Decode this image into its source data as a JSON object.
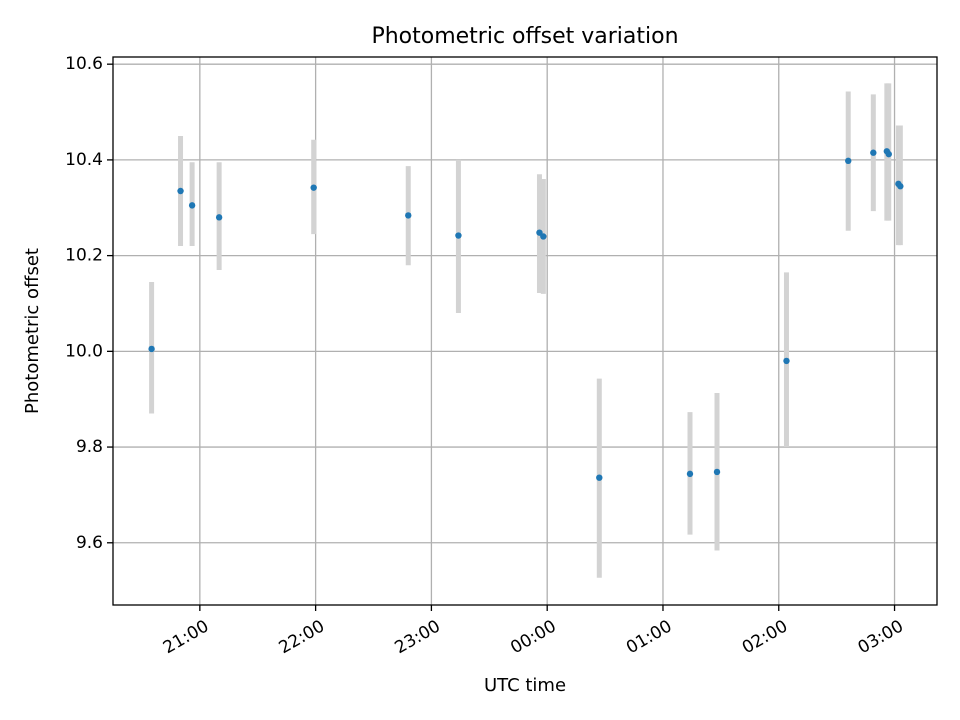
{
  "chart_data": {
    "type": "scatter",
    "title": "Photometric offset variation",
    "xlabel": "UTC time",
    "ylabel": "Photometric offset",
    "grid": true,
    "x_unit": "UTC time, hh:mm, evening to early morning of the next day",
    "xlim": [
      "20:15",
      "03:22"
    ],
    "ylim": [
      9.47,
      10.615
    ],
    "x_ticks": [
      "21:00",
      "22:00",
      "23:00",
      "00:00",
      "01:00",
      "02:00",
      "03:00"
    ],
    "y_ticks": [
      "9.6",
      "9.8",
      "10.0",
      "10.2",
      "10.4",
      "10.6"
    ],
    "colors": {
      "point": "#1f77b4",
      "errorbar": "#d3d3d3",
      "grid": "#b0b0b0"
    },
    "points": [
      {
        "x": "20:35",
        "y": 10.005,
        "ylow": 9.87,
        "yhigh": 10.145
      },
      {
        "x": "20:50",
        "y": 10.335,
        "ylow": 10.22,
        "yhigh": 10.45
      },
      {
        "x": "20:56",
        "y": 10.305,
        "ylow": 10.22,
        "yhigh": 10.395
      },
      {
        "x": "21:10",
        "y": 10.28,
        "ylow": 10.17,
        "yhigh": 10.395
      },
      {
        "x": "21:59",
        "y": 10.342,
        "ylow": 10.245,
        "yhigh": 10.442
      },
      {
        "x": "22:48",
        "y": 10.284,
        "ylow": 10.18,
        "yhigh": 10.387
      },
      {
        "x": "23:14",
        "y": 10.242,
        "ylow": 10.08,
        "yhigh": 10.4
      },
      {
        "x": "23:56",
        "y": 10.248,
        "ylow": 10.122,
        "yhigh": 10.37
      },
      {
        "x": "23:58",
        "y": 10.24,
        "ylow": 10.12,
        "yhigh": 10.36
      },
      {
        "x": "00:27",
        "y": 9.736,
        "ylow": 9.527,
        "yhigh": 9.943
      },
      {
        "x": "01:14",
        "y": 9.744,
        "ylow": 9.617,
        "yhigh": 9.873
      },
      {
        "x": "01:28",
        "y": 9.748,
        "ylow": 9.584,
        "yhigh": 9.913
      },
      {
        "x": "02:04",
        "y": 9.98,
        "ylow": 9.8,
        "yhigh": 10.165
      },
      {
        "x": "02:36",
        "y": 10.398,
        "ylow": 10.252,
        "yhigh": 10.543
      },
      {
        "x": "02:49",
        "y": 10.415,
        "ylow": 10.293,
        "yhigh": 10.537
      },
      {
        "x": "02:56",
        "y": 10.418,
        "ylow": 10.273,
        "yhigh": 10.56
      },
      {
        "x": "02:57",
        "y": 10.412,
        "ylow": 10.273,
        "yhigh": 10.56
      },
      {
        "x": "03:02",
        "y": 10.35,
        "ylow": 10.222,
        "yhigh": 10.472
      },
      {
        "x": "03:03",
        "y": 10.345,
        "ylow": 10.222,
        "yhigh": 10.472
      }
    ]
  }
}
